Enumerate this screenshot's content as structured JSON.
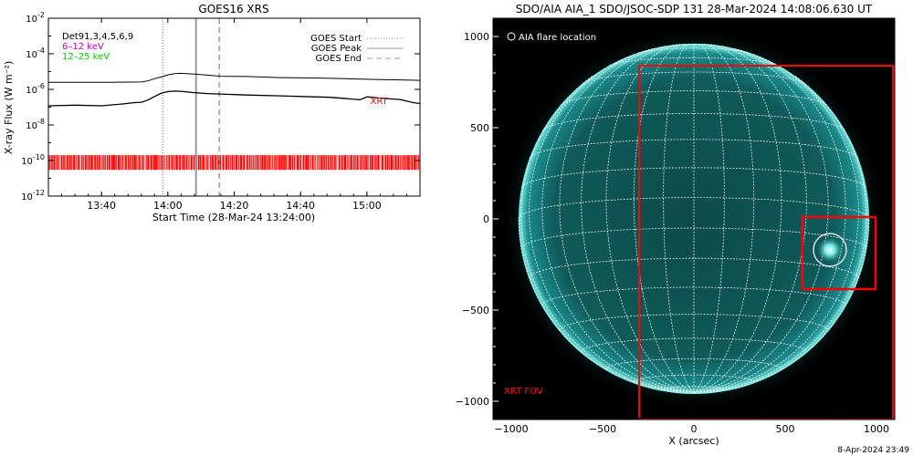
{
  "footer_timestamp": "8-Apr-2024 23:49",
  "chart_data": [
    {
      "type": "line",
      "title": "GOES16 XRS",
      "xlabel": "Start Time (28-Mar-24 13:24:00)",
      "ylabel": "X-ray Flux (W m⁻²)",
      "y_scale": "log",
      "x_unit": "minutes after 28-Mar-24 13:24:00",
      "xlim": [
        0,
        112
      ],
      "ylim": [
        1e-12,
        0.01
      ],
      "x_tick_labels": [
        "13:40",
        "14:00",
        "14:20",
        "14:40",
        "15:00"
      ],
      "x_tick_values": [
        16,
        36,
        56,
        76,
        96
      ],
      "y_tick_labels": [
        {
          "base": "10",
          "exp": "-2",
          "value": 0.01
        },
        {
          "base": "10",
          "exp": "-4",
          "value": 0.0001
        },
        {
          "base": "10",
          "exp": "-6",
          "value": 1e-06
        },
        {
          "base": "10",
          "exp": "-8",
          "value": 1e-08
        },
        {
          "base": "10",
          "exp": "-10",
          "value": 1e-10
        },
        {
          "base": "10",
          "exp": "-12",
          "value": 1e-12
        }
      ],
      "legend_left": [
        {
          "text": "Det91,3,4,5,6,9",
          "color": "#000000"
        },
        {
          "text": "6–12 keV",
          "color": "#cc00cc"
        },
        {
          "text": "12–25 keV",
          "color": "#00cc00"
        }
      ],
      "legend_right": [
        {
          "text": "GOES Start",
          "style": "dotted",
          "color": "#999999"
        },
        {
          "text": "GOES Peak",
          "style": "solid",
          "color": "#999999"
        },
        {
          "text": "GOES End",
          "style": "dashed",
          "color": "#999999"
        }
      ],
      "series": [
        {
          "x": [
            0,
            10,
            20,
            28,
            30,
            32,
            34,
            36,
            38,
            40,
            44,
            48,
            52,
            60,
            70,
            80,
            90,
            100,
            106,
            112
          ],
          "y": [
            2.5e-06,
            2.5e-06,
            2.5e-06,
            2.6e-06,
            3e-06,
            4e-06,
            5e-06,
            6.5e-06,
            7.6e-06,
            8e-06,
            7.3e-06,
            6.3e-06,
            5.5e-06,
            5.3e-06,
            4.6e-06,
            4.4e-06,
            4e-06,
            3.6e-06,
            3.4e-06,
            3.2e-06
          ]
        },
        {
          "x": [
            0,
            8,
            16,
            22,
            26,
            28,
            30,
            32,
            34,
            36,
            38,
            40,
            44,
            48,
            52,
            60,
            70,
            80,
            85,
            90,
            94,
            96,
            100,
            106,
            110,
            112
          ],
          "y": [
            1.2e-07,
            1.3e-07,
            1.2e-07,
            1.5e-07,
            1.8e-07,
            1.9e-07,
            2.5e-07,
            4e-07,
            6e-07,
            7.5e-07,
            8e-07,
            7.8e-07,
            6.5e-07,
            5.8e-07,
            5.5e-07,
            4.8e-07,
            4.3e-07,
            3.8e-07,
            3.6e-07,
            3e-07,
            2.6e-07,
            3.8e-07,
            3.2e-07,
            2.7e-07,
            1.8e-07,
            1.6e-07
          ]
        }
      ],
      "event_lines": [
        {
          "name": "GOES Start",
          "x": 34.5,
          "style": "dotted"
        },
        {
          "name": "GOES Peak",
          "x": 44.5,
          "style": "solid"
        },
        {
          "name": "GOES End",
          "x": 51.5,
          "style": "dashed"
        }
      ],
      "xrt_label": "XRT",
      "xrt_label_x": 97,
      "xrt_label_y": 1.5e-07,
      "xrt_band": {
        "y_low": 3e-11,
        "y_high": 2e-10,
        "color": "#ff0000"
      }
    },
    {
      "type": "image",
      "title": "SDO/AIA AIA_1 SDO/JSOC-SDP 131 28-Mar-2024 14:08:06.630 UT",
      "xlabel": "X (arcsec)",
      "xlim": [
        -1100,
        1100
      ],
      "ylim": [
        -1100,
        1100
      ],
      "x_ticks": [
        -1000,
        -500,
        0,
        500,
        1000
      ],
      "y_ticks": [
        -1000,
        -500,
        0,
        500,
        1000
      ],
      "x_tick_labels": [
        "−1000",
        "−500",
        "0",
        "500",
        "1000"
      ],
      "y_tick_labels": [
        "−1000",
        "−500",
        "0",
        "500",
        "1000"
      ],
      "solar_radius": 960,
      "legend": "AIA flare location",
      "xrt_fov_label": "XRT FOV",
      "flare_location": [
        745,
        -170
      ],
      "flare_circle_radius": 90,
      "xrt_fov": [
        -300,
        1090,
        -1100,
        840
      ],
      "flare_box": [
        595,
        995,
        -385,
        10
      ],
      "marker_color": "#ff0000",
      "image_colors": {
        "disk_center": "#0b4a4a",
        "disk_edge": "#1a8a8a",
        "limb": "#7ff0e8",
        "background": "#000000"
      }
    }
  ]
}
